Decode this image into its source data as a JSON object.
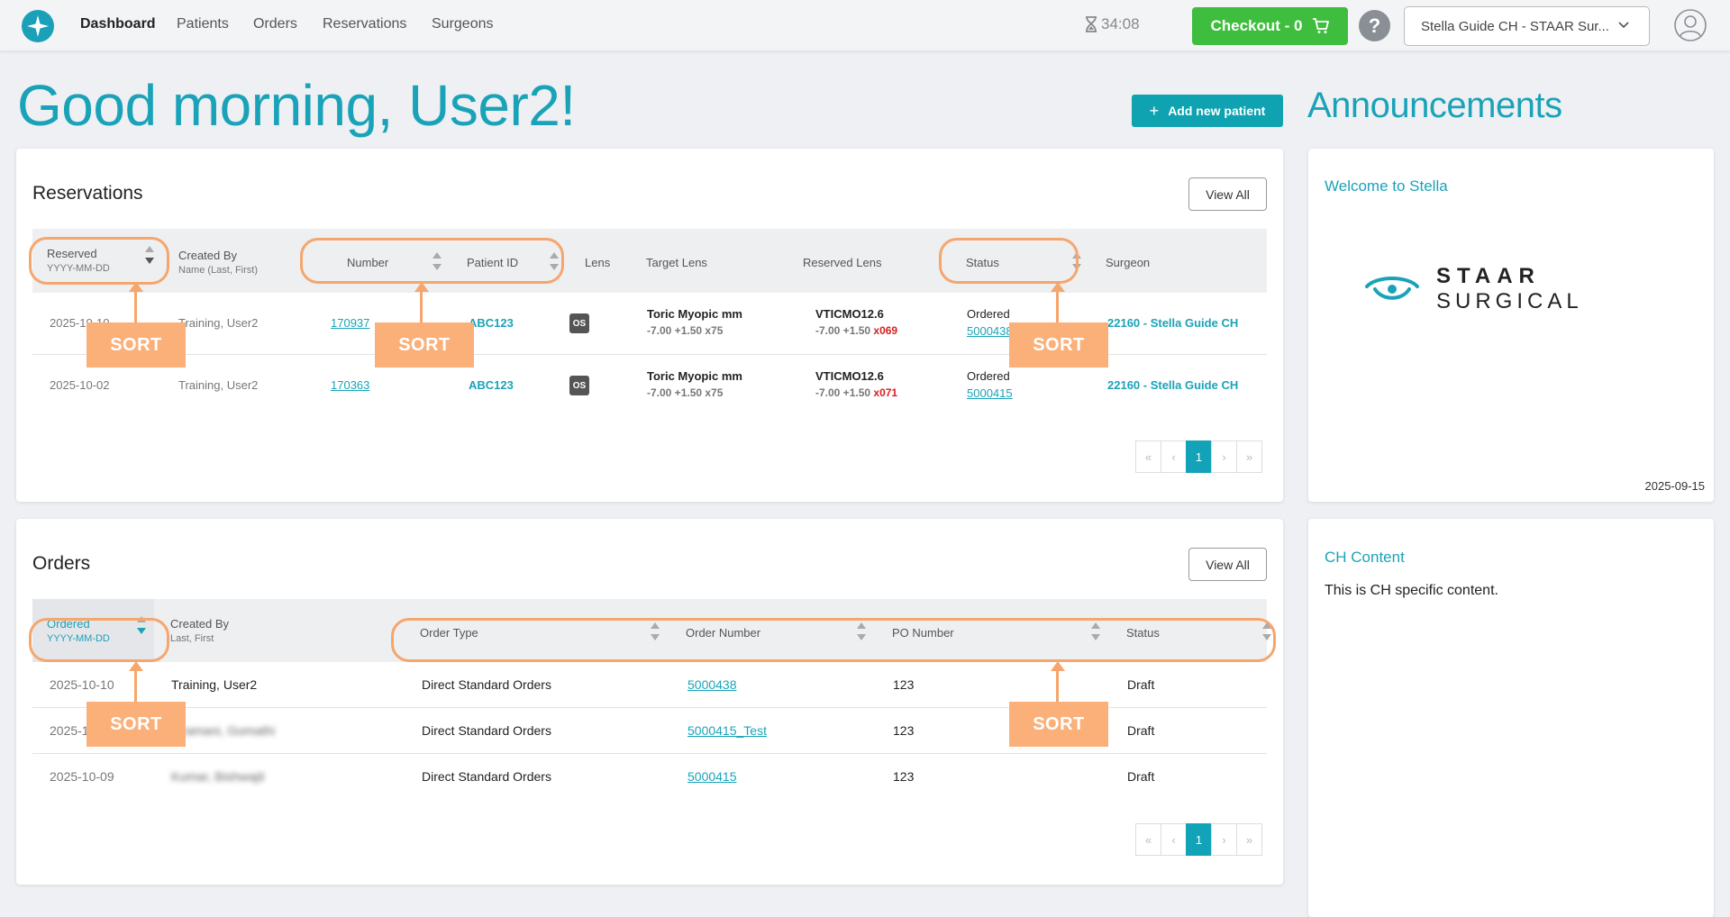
{
  "nav": {
    "links": [
      "Dashboard",
      "Patients",
      "Orders",
      "Reservations",
      "Surgeons"
    ],
    "timer": "34:08",
    "checkout": "Checkout - 0",
    "help": "?",
    "account": "Stella Guide CH - STAAR Sur..."
  },
  "greeting": "Good morning, User2!",
  "add_patient": "Add new patient",
  "announcements_title": "Announcements",
  "reservations": {
    "title": "Reservations",
    "view_all": "View All",
    "columns": {
      "reserved": "Reserved",
      "reserved_sub": "YYYY-MM-DD",
      "created_by": "Created By",
      "created_by_sub": "Name (Last, First)",
      "number": "Number",
      "patient_id": "Patient ID",
      "lens": "Lens",
      "target_lens": "Target Lens",
      "reserved_lens": "Reserved Lens",
      "status": "Status",
      "surgeon": "Surgeon"
    },
    "rows": [
      {
        "reserved": "2025-10-10",
        "created_by": "Training, User2",
        "number": "170937",
        "patient_id": "ABC123",
        "lens": "OS",
        "target_lens": "Toric Myopic mm",
        "target_lens_power": "-7.00 +1.50 x75",
        "reserved_lens": "VTICMO12.6",
        "reserved_lens_power": "-7.00 +1.50",
        "reserved_lens_axis": "x069",
        "status": "Ordered",
        "status_order": "5000438",
        "surgeon": "22160 - Stella Guide CH"
      },
      {
        "reserved": "2025-10-02",
        "created_by": "Training, User2",
        "number": "170363",
        "patient_id": "ABC123",
        "lens": "OS",
        "target_lens": "Toric Myopic mm",
        "target_lens_power": "-7.00 +1.50 x75",
        "reserved_lens": "VTICMO12.6",
        "reserved_lens_power": "-7.00 +1.50",
        "reserved_lens_axis": "x071",
        "status": "Ordered",
        "status_order": "5000415",
        "surgeon": "22160 - Stella Guide CH"
      }
    ],
    "pager": {
      "first": "«",
      "prev": "‹",
      "page": "1",
      "next": "›",
      "last": "»"
    }
  },
  "orders": {
    "title": "Orders",
    "view_all": "View All",
    "columns": {
      "ordered": "Ordered",
      "ordered_sub": "YYYY-MM-DD",
      "created_by": "Created By",
      "created_by_sub": "Last, First",
      "order_type": "Order Type",
      "order_number": "Order Number",
      "po_number": "PO Number",
      "status": "Status"
    },
    "rows": [
      {
        "ordered": "2025-10-10",
        "created_by": "Training, User2",
        "order_type": "Direct Standard Orders",
        "order_number": "5000438",
        "po_number": "123",
        "status": "Draft"
      },
      {
        "ordered": "2025-10-10",
        "created_by": "Ibramani, Gomathi",
        "order_type": "Direct Standard Orders",
        "order_number": "5000415_Test",
        "po_number": "123",
        "status": "Draft"
      },
      {
        "ordered": "2025-10-09",
        "created_by": "Kumar, Bishwajit",
        "order_type": "Direct Standard Orders",
        "order_number": "5000415",
        "po_number": "123",
        "status": "Draft"
      }
    ],
    "pager": {
      "first": "«",
      "prev": "‹",
      "page": "1",
      "next": "›",
      "last": "»"
    }
  },
  "announcement_cards": [
    {
      "title": "Welcome to Stella",
      "logo_top": "STAAR",
      "logo_bottom": "SURGICAL",
      "date": "2025-09-15"
    },
    {
      "title": "CH Content",
      "body": "This is CH specific content."
    }
  ],
  "sort_label": "SORT",
  "colors": {
    "brand": "#1aa3b8",
    "checkout": "#3ebd3e",
    "annotation": "#f5a66d",
    "alert": "#d62020"
  }
}
